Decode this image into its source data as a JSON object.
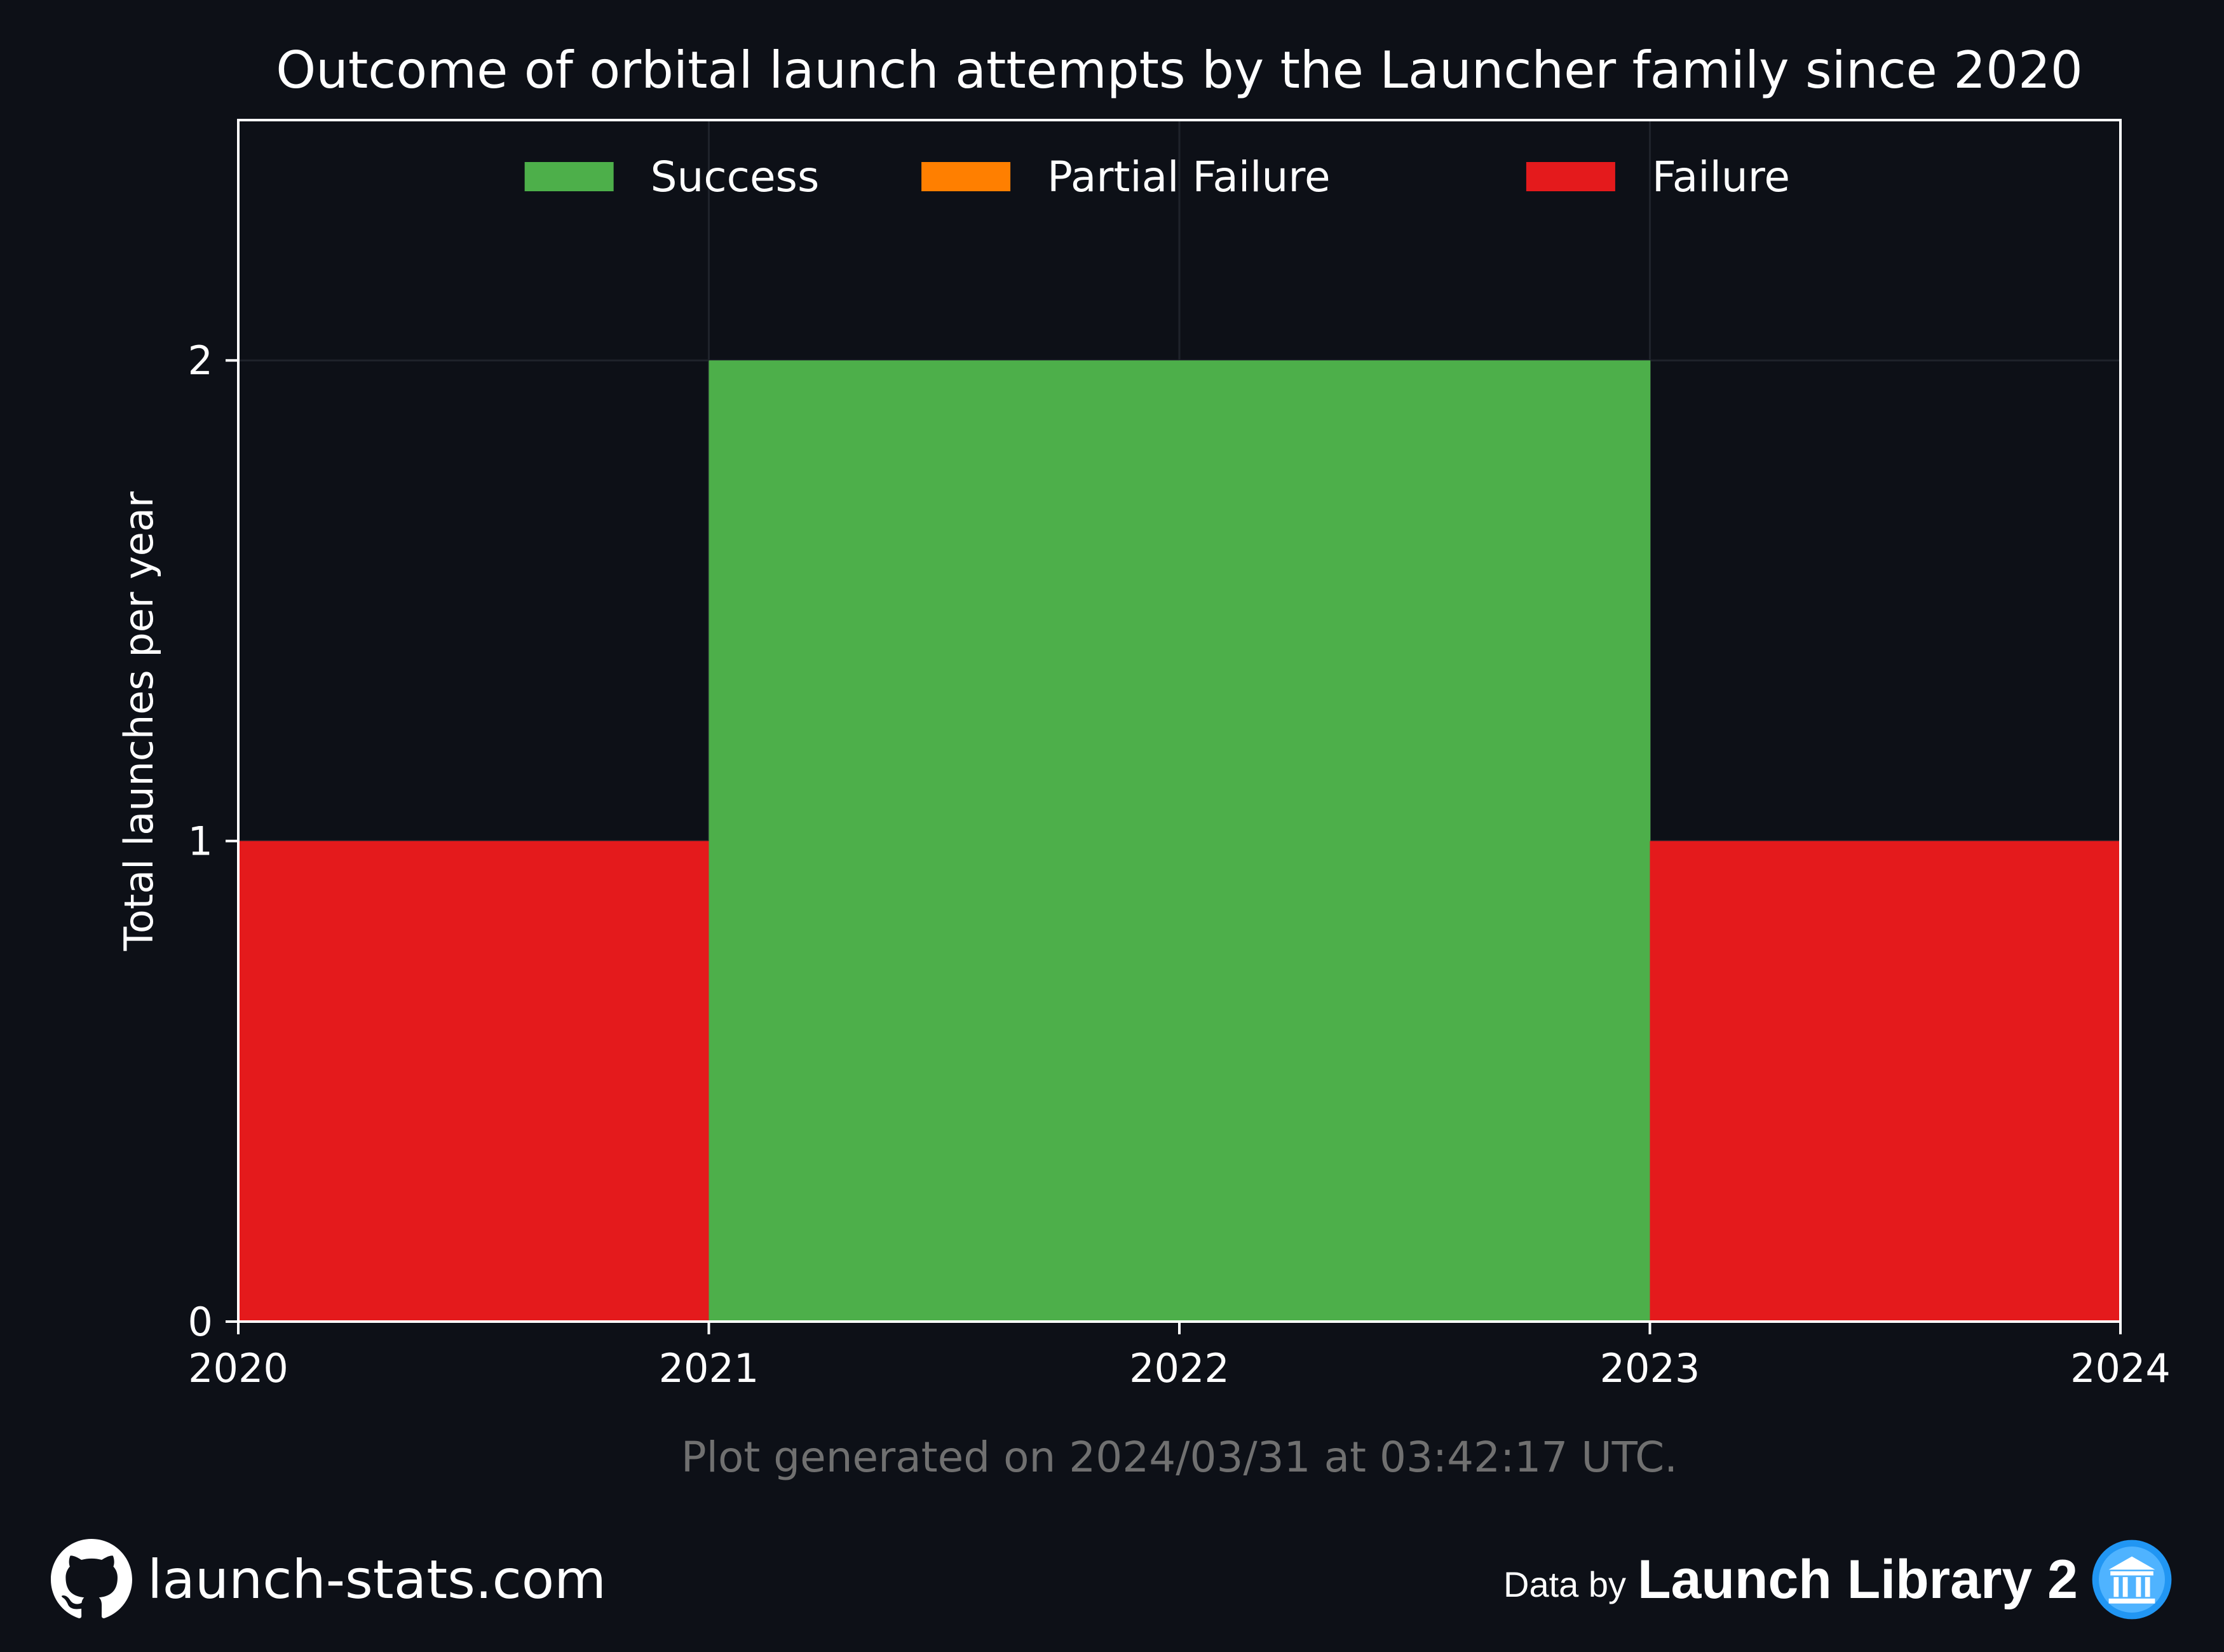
{
  "chart_data": {
    "type": "bar",
    "title": "Outcome of orbital launch attempts by the Launcher family since 2020",
    "ylabel": "Total launches per year",
    "xlabel": "",
    "x_ticks": [
      "2020",
      "2021",
      "2022",
      "2023",
      "2024"
    ],
    "y_ticks": [
      "0",
      "1",
      "2"
    ],
    "xlim": [
      2020,
      2024
    ],
    "ylim": [
      0,
      2.5
    ],
    "grid": true,
    "legend_placement": "top-center",
    "stacked": true,
    "bins": [
      {
        "start": 2020,
        "end": 2021,
        "Success": 0,
        "Partial Failure": 0,
        "Failure": 1
      },
      {
        "start": 2021,
        "end": 2022,
        "Success": 2,
        "Partial Failure": 0,
        "Failure": 0
      },
      {
        "start": 2022,
        "end": 2023,
        "Success": 2,
        "Partial Failure": 0,
        "Failure": 0
      },
      {
        "start": 2023,
        "end": 2024,
        "Success": 0,
        "Partial Failure": 0,
        "Failure": 1
      }
    ],
    "series": [
      {
        "name": "Success",
        "color": "#4daf4a"
      },
      {
        "name": "Partial Failure",
        "color": "#ff7f00"
      },
      {
        "name": "Failure",
        "color": "#e41a1c"
      }
    ],
    "annotation": "Plot generated on 2024/03/31 at 03:42:17 UTC."
  },
  "colors": {
    "background": "#0d1017",
    "text": "#ffffff",
    "annotation": "#707070"
  },
  "footer": {
    "github_icon": "github-icon",
    "site": "launch-stats.com",
    "data_by": "Data by",
    "source": "Launch Library 2",
    "source_icon": "launch-library-logo-icon"
  }
}
